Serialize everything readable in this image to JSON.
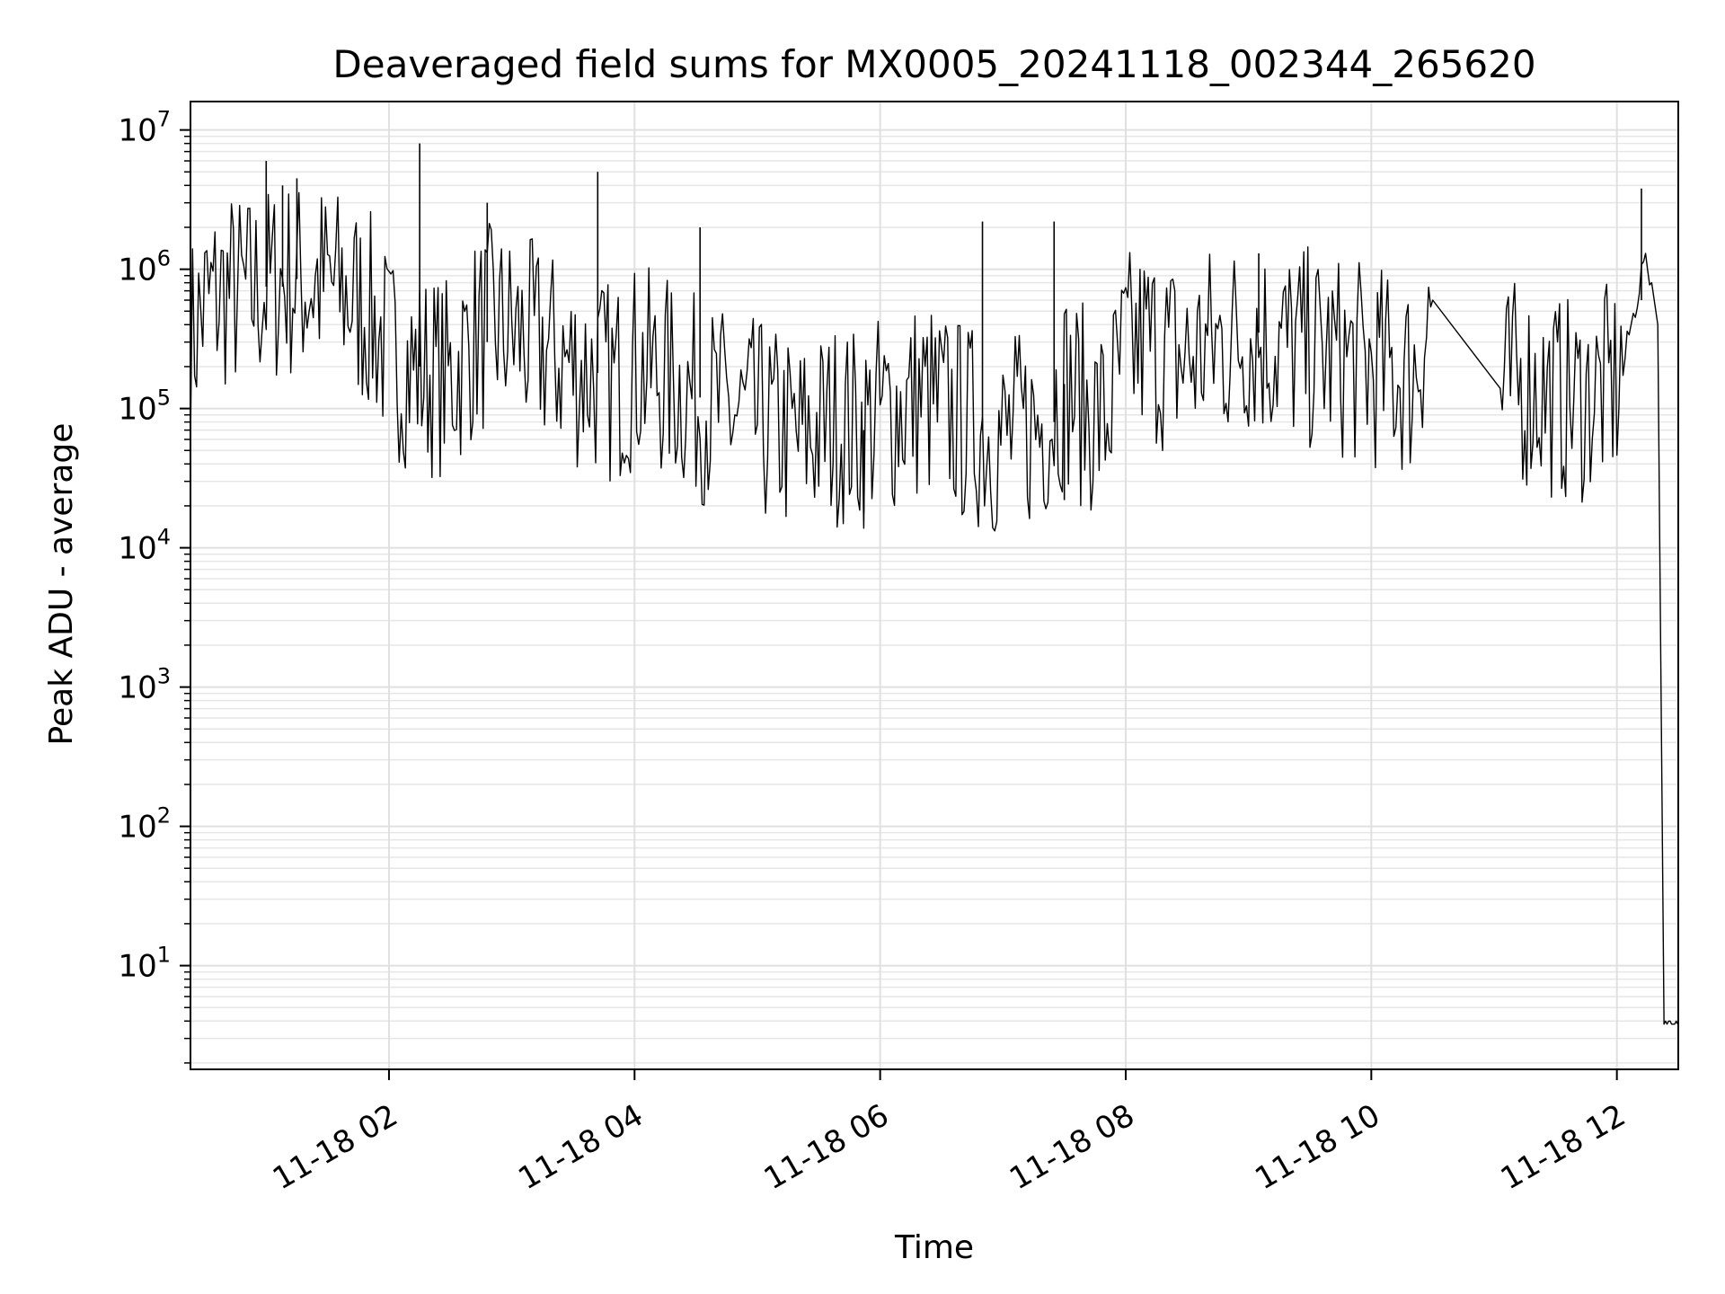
{
  "chart_data": {
    "type": "line",
    "title": "Deaveraged field sums for MX0005_20241118_002344_265620",
    "xlabel": "Time",
    "ylabel": "Peak ADU - average",
    "yscale": "log",
    "ylim": [
      1.8,
      16000000
    ],
    "xlim": [
      "2024-11-18 00:23",
      "2024-11-18 12:30"
    ],
    "grid": true,
    "x_ticks": [
      "11-18 02",
      "11-18 04",
      "11-18 06",
      "11-18 08",
      "11-18 10",
      "11-18 12"
    ],
    "y_ticks": [
      {
        "base": "10",
        "exp": "1",
        "value": 10
      },
      {
        "base": "10",
        "exp": "2",
        "value": 100
      },
      {
        "base": "10",
        "exp": "3",
        "value": 1000
      },
      {
        "base": "10",
        "exp": "4",
        "value": 10000
      },
      {
        "base": "10",
        "exp": "5",
        "value": 100000
      },
      {
        "base": "10",
        "exp": "6",
        "value": 1000000
      },
      {
        "base": "10",
        "exp": "7",
        "value": 10000000
      }
    ],
    "series": [
      {
        "color": "#000000",
        "x": [
          "2024-11-18 00:23",
          "2024-11-18 00:30",
          "2024-11-18 00:40",
          "2024-11-18 00:50",
          "2024-11-18 01:00",
          "2024-11-18 01:10",
          "2024-11-18 01:20",
          "2024-11-18 01:30",
          "2024-11-18 01:40",
          "2024-11-18 01:50",
          "2024-11-18 02:00",
          "2024-11-18 02:10",
          "2024-11-18 02:20",
          "2024-11-18 02:30",
          "2024-11-18 02:40",
          "2024-11-18 02:50",
          "2024-11-18 03:00",
          "2024-11-18 03:10",
          "2024-11-18 03:20",
          "2024-11-18 03:30",
          "2024-11-18 03:40",
          "2024-11-18 03:50",
          "2024-11-18 04:00",
          "2024-11-18 04:10",
          "2024-11-18 04:20",
          "2024-11-18 04:30",
          "2024-11-18 04:40",
          "2024-11-18 04:50",
          "2024-11-18 05:00",
          "2024-11-18 05:10",
          "2024-11-18 05:20",
          "2024-11-18 05:30",
          "2024-11-18 05:40",
          "2024-11-18 05:50",
          "2024-11-18 06:00",
          "2024-11-18 06:10",
          "2024-11-18 06:20",
          "2024-11-18 06:30",
          "2024-11-18 06:40",
          "2024-11-18 06:50",
          "2024-11-18 07:00",
          "2024-11-18 07:10",
          "2024-11-18 07:20",
          "2024-11-18 07:30",
          "2024-11-18 07:40",
          "2024-11-18 07:50",
          "2024-11-18 08:00",
          "2024-11-18 08:10",
          "2024-11-18 08:20",
          "2024-11-18 08:30",
          "2024-11-18 08:40",
          "2024-11-18 08:50",
          "2024-11-18 09:00",
          "2024-11-18 09:10",
          "2024-11-18 09:20",
          "2024-11-18 09:30",
          "2024-11-18 09:40",
          "2024-11-18 09:50",
          "2024-11-18 10:00",
          "2024-11-18 10:10",
          "2024-11-18 10:20",
          "2024-11-18 10:30",
          "2024-11-18 11:03",
          "2024-11-18 11:10",
          "2024-11-18 11:20",
          "2024-11-18 11:30",
          "2024-11-18 11:40",
          "2024-11-18 11:50",
          "2024-11-18 12:00",
          "2024-11-18 12:05",
          "2024-11-18 12:10",
          "2024-11-18 12:13",
          "2024-11-18 12:17",
          "2024-11-18 12:20",
          "2024-11-18 12:23",
          "2024-11-18 12:30"
        ],
        "values": [
          300000,
          550000,
          700000,
          650000,
          750000,
          850000,
          800000,
          800000,
          650000,
          500000,
          250000,
          200000,
          180000,
          160000,
          300000,
          400000,
          350000,
          300000,
          250000,
          200000,
          180000,
          150000,
          200000,
          180000,
          150000,
          120000,
          100000,
          90000,
          80000,
          70000,
          60000,
          70000,
          80000,
          70000,
          90000,
          100000,
          120000,
          100000,
          80000,
          70000,
          60000,
          70000,
          80000,
          150000,
          100000,
          80000,
          250000,
          300000,
          250000,
          220000,
          280000,
          300000,
          350000,
          300000,
          280000,
          260000,
          240000,
          220000,
          200000,
          180000,
          170000,
          600000,
          120000,
          150000,
          140000,
          120000,
          110000,
          130000,
          150000,
          300000,
          600000,
          1200000,
          800000,
          400000,
          4,
          4
        ],
        "spikes": [
          {
            "x": "2024-11-18 01:00",
            "value": 6000000
          },
          {
            "x": "2024-11-18 01:08",
            "value": 4000000
          },
          {
            "x": "2024-11-18 01:15",
            "value": 4500000
          },
          {
            "x": "2024-11-18 02:15",
            "value": 8000000
          },
          {
            "x": "2024-11-18 02:48",
            "value": 3000000
          },
          {
            "x": "2024-11-18 03:42",
            "value": 5000000
          },
          {
            "x": "2024-11-18 04:32",
            "value": 2000000
          },
          {
            "x": "2024-11-18 06:50",
            "value": 2200000
          },
          {
            "x": "2024-11-18 07:25",
            "value": 2200000
          },
          {
            "x": "2024-11-18 07:30",
            "value": 22000
          },
          {
            "x": "2024-11-18 05:52",
            "value": 18000
          },
          {
            "x": "2024-11-18 09:05",
            "value": 1300000
          },
          {
            "x": "2024-11-18 12:12",
            "value": 3800000
          }
        ]
      }
    ]
  }
}
